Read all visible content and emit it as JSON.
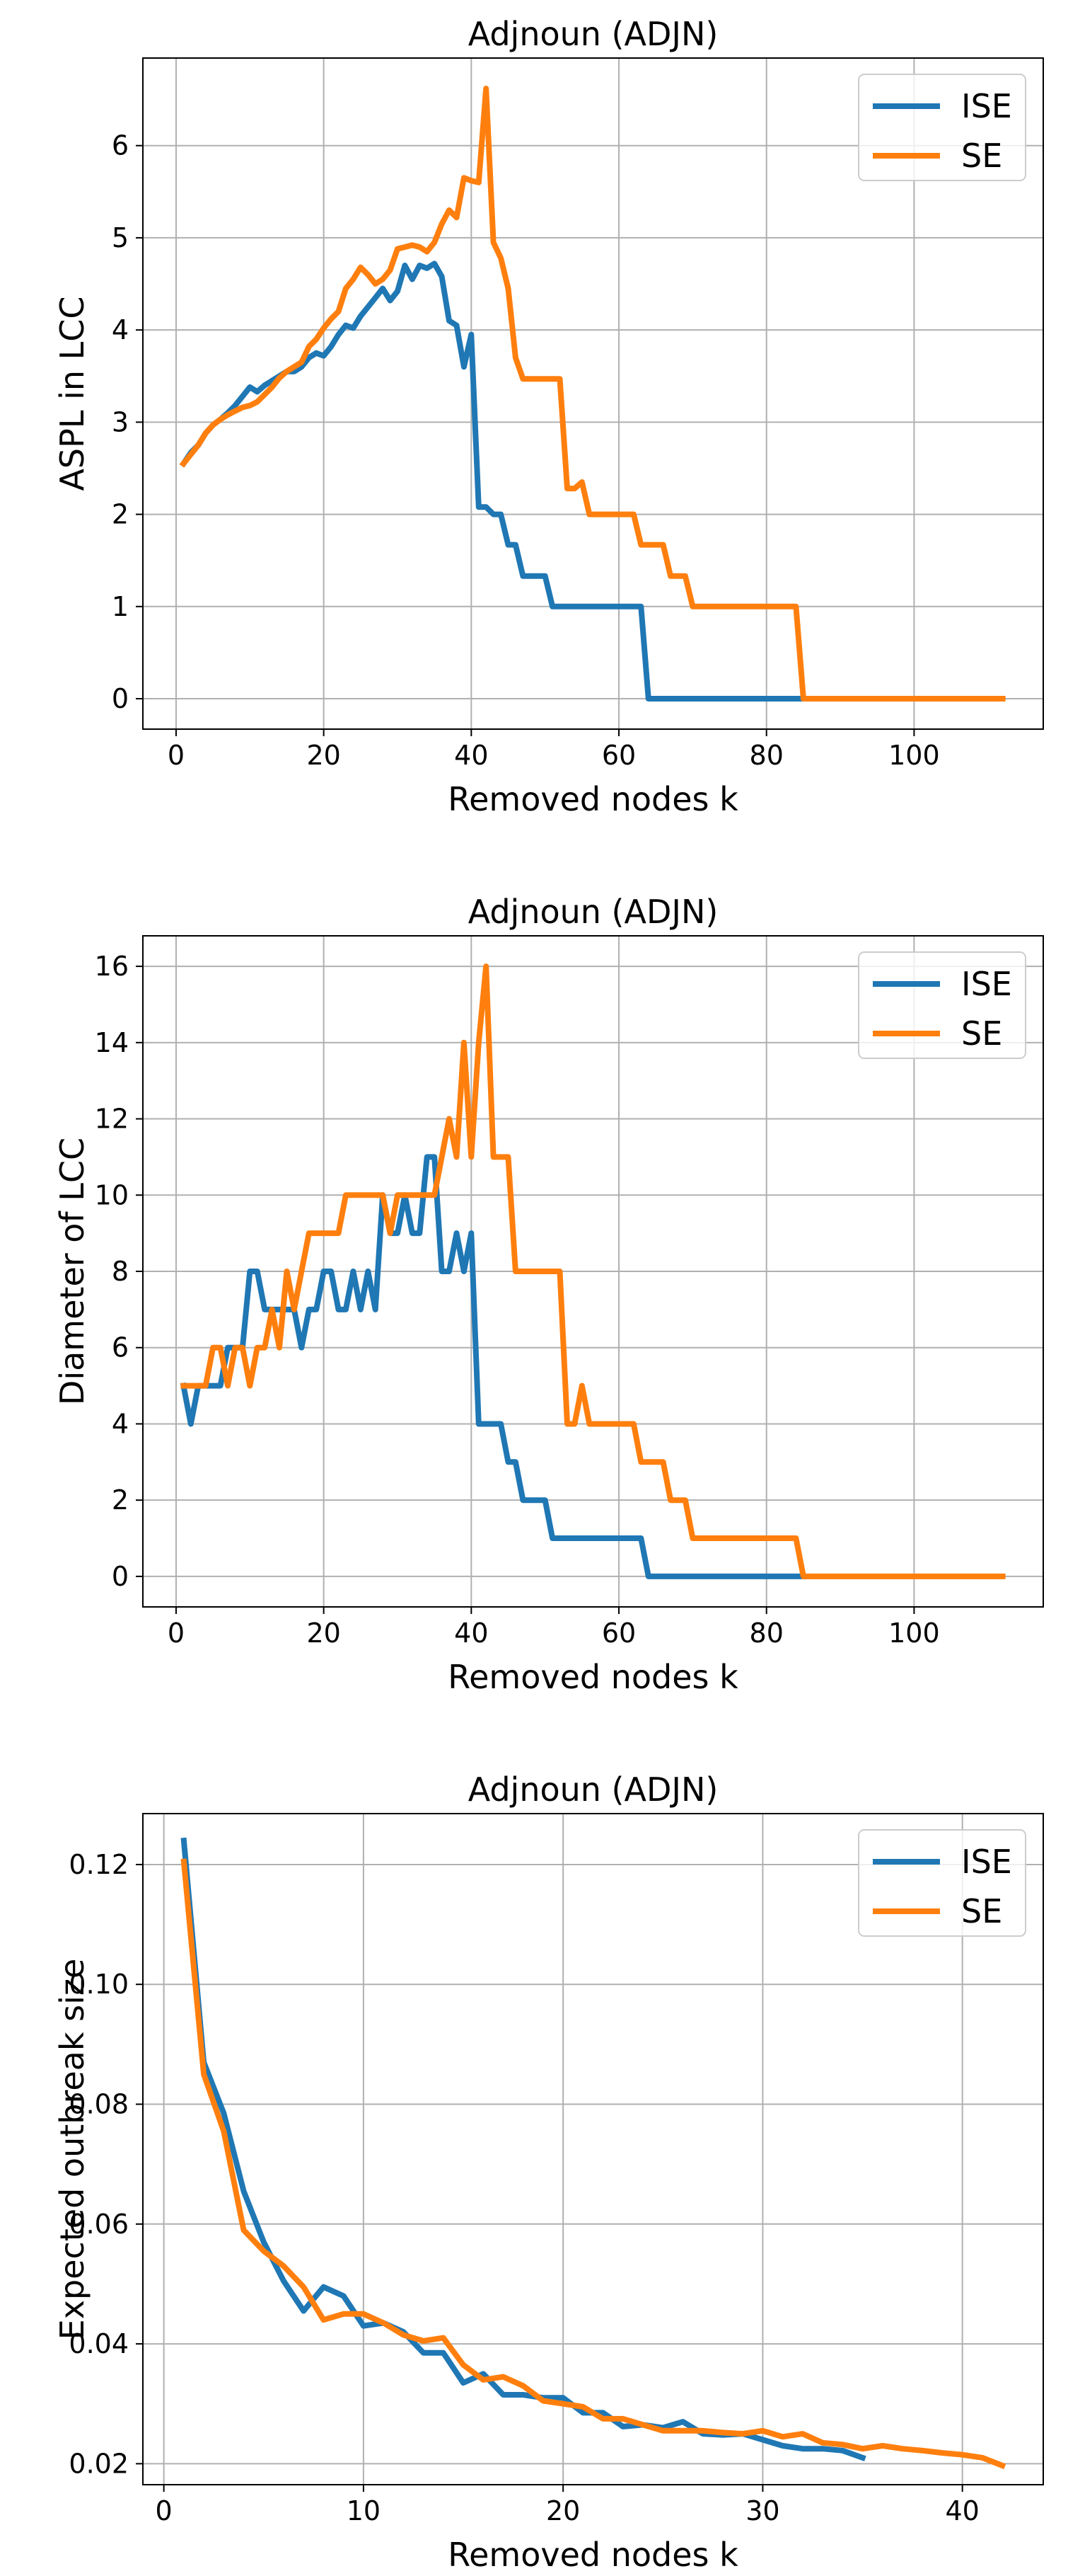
{
  "colors": {
    "ISE": "#1f77b4",
    "SE": "#ff7f0e",
    "grid": "#b0b0b0",
    "axes": "#000000"
  },
  "chart_data": [
    {
      "type": "line",
      "title": "Adjnoun (ADJN)",
      "xlabel": "Removed nodes k",
      "ylabel": "ASPL in LCC",
      "xlim": [
        -4.5,
        117.5
      ],
      "ylim": [
        -0.33,
        6.95
      ],
      "xticks": [
        0,
        20,
        40,
        60,
        80,
        100
      ],
      "yticks": [
        0,
        1,
        2,
        3,
        4,
        5,
        6
      ],
      "grid": true,
      "legend_position": "upper right",
      "series": [
        {
          "name": "ISE",
          "x": [
            1,
            2,
            3,
            4,
            5,
            6,
            7,
            8,
            9,
            10,
            11,
            12,
            13,
            14,
            15,
            16,
            17,
            18,
            19,
            20,
            21,
            22,
            23,
            24,
            25,
            26,
            27,
            28,
            29,
            30,
            31,
            32,
            33,
            34,
            35,
            36,
            37,
            38,
            39,
            40,
            41,
            42,
            43,
            44,
            45,
            46,
            47,
            48,
            49,
            50,
            51,
            52,
            53,
            54,
            55,
            56,
            57,
            58,
            59,
            60,
            61,
            62,
            63,
            64,
            65,
            70,
            75,
            80,
            85
          ],
          "y": [
            2.55,
            2.67,
            2.75,
            2.88,
            2.97,
            3.03,
            3.1,
            3.18,
            3.28,
            3.38,
            3.33,
            3.4,
            3.45,
            3.5,
            3.55,
            3.55,
            3.6,
            3.7,
            3.75,
            3.72,
            3.82,
            3.95,
            4.05,
            4.02,
            4.15,
            4.25,
            4.35,
            4.45,
            4.32,
            4.42,
            4.7,
            4.55,
            4.7,
            4.67,
            4.72,
            4.58,
            4.1,
            4.05,
            3.6,
            3.95,
            2.08,
            2.08,
            2.0,
            2.0,
            1.67,
            1.67,
            1.33,
            1.33,
            1.33,
            1.33,
            1.0,
            1.0,
            1.0,
            1.0,
            1.0,
            1.0,
            1.0,
            1.0,
            1.0,
            1.0,
            1.0,
            1.0,
            1.0,
            0.0,
            0.0,
            0.0,
            0.0,
            0.0,
            0.0
          ]
        },
        {
          "name": "SE",
          "x": [
            1,
            2,
            3,
            4,
            5,
            6,
            7,
            8,
            9,
            10,
            11,
            12,
            13,
            14,
            15,
            16,
            17,
            18,
            19,
            20,
            21,
            22,
            23,
            24,
            25,
            26,
            27,
            28,
            29,
            30,
            31,
            32,
            33,
            34,
            35,
            36,
            37,
            38,
            39,
            40,
            41,
            42,
            43,
            44,
            45,
            46,
            47,
            48,
            49,
            50,
            51,
            52,
            53,
            54,
            55,
            56,
            57,
            58,
            59,
            60,
            61,
            62,
            63,
            64,
            65,
            66,
            67,
            68,
            69,
            70,
            75,
            80,
            84,
            85,
            90,
            100,
            112
          ],
          "y": [
            2.55,
            2.65,
            2.75,
            2.88,
            2.97,
            3.03,
            3.08,
            3.12,
            3.16,
            3.18,
            3.22,
            3.3,
            3.38,
            3.48,
            3.55,
            3.6,
            3.65,
            3.82,
            3.9,
            4.02,
            4.12,
            4.2,
            4.45,
            4.55,
            4.68,
            4.6,
            4.5,
            4.55,
            4.65,
            4.88,
            4.9,
            4.92,
            4.9,
            4.85,
            4.95,
            5.15,
            5.3,
            5.22,
            5.65,
            5.62,
            5.6,
            6.62,
            4.95,
            4.78,
            4.45,
            3.7,
            3.47,
            3.47,
            3.47,
            3.47,
            3.47,
            3.47,
            2.28,
            2.28,
            2.35,
            2.0,
            2.0,
            2.0,
            2.0,
            2.0,
            2.0,
            2.0,
            1.67,
            1.67,
            1.67,
            1.67,
            1.33,
            1.33,
            1.33,
            1.0,
            1.0,
            1.0,
            1.0,
            0.0,
            0.0,
            0.0,
            0.0
          ]
        }
      ]
    },
    {
      "type": "line",
      "title": "Adjnoun (ADJN)",
      "xlabel": "Removed nodes k",
      "ylabel": "Diameter of LCC",
      "xlim": [
        -4.5,
        117.5
      ],
      "ylim": [
        -0.8,
        16.8
      ],
      "xticks": [
        0,
        20,
        40,
        60,
        80,
        100
      ],
      "yticks": [
        0,
        2,
        4,
        6,
        8,
        10,
        12,
        14,
        16
      ],
      "grid": true,
      "legend_position": "upper right",
      "series": [
        {
          "name": "ISE",
          "x": [
            1,
            2,
            3,
            4,
            5,
            6,
            7,
            8,
            9,
            10,
            11,
            12,
            13,
            14,
            15,
            16,
            17,
            18,
            19,
            20,
            21,
            22,
            23,
            24,
            25,
            26,
            27,
            28,
            29,
            30,
            31,
            32,
            33,
            34,
            35,
            36,
            37,
            38,
            39,
            40,
            41,
            42,
            43,
            44,
            45,
            46,
            47,
            48,
            49,
            50,
            51,
            52,
            53,
            54,
            55,
            56,
            57,
            58,
            59,
            60,
            61,
            62,
            63,
            64,
            65,
            70,
            75,
            80,
            85
          ],
          "y": [
            5,
            4,
            5,
            5,
            5,
            5,
            6,
            6,
            6,
            8,
            8,
            7,
            7,
            7,
            7,
            7,
            6,
            7,
            7,
            8,
            8,
            7,
            7,
            8,
            7,
            8,
            7,
            10,
            9,
            9,
            10,
            9,
            9,
            11,
            11,
            8,
            8,
            9,
            8,
            9,
            4,
            4,
            4,
            4,
            3,
            3,
            2,
            2,
            2,
            2,
            1,
            1,
            1,
            1,
            1,
            1,
            1,
            1,
            1,
            1,
            1,
            1,
            1,
            0,
            0,
            0,
            0,
            0,
            0
          ]
        },
        {
          "name": "SE",
          "x": [
            1,
            2,
            3,
            4,
            5,
            6,
            7,
            8,
            9,
            10,
            11,
            12,
            13,
            14,
            15,
            16,
            17,
            18,
            19,
            20,
            21,
            22,
            23,
            24,
            25,
            26,
            27,
            28,
            29,
            30,
            31,
            32,
            33,
            34,
            35,
            36,
            37,
            38,
            39,
            40,
            41,
            42,
            43,
            44,
            45,
            46,
            47,
            48,
            49,
            50,
            51,
            52,
            53,
            54,
            55,
            56,
            57,
            58,
            59,
            60,
            61,
            62,
            63,
            64,
            65,
            66,
            67,
            68,
            69,
            70,
            75,
            80,
            84,
            85,
            90,
            100,
            112
          ],
          "y": [
            5,
            5,
            5,
            5,
            6,
            6,
            5,
            6,
            6,
            5,
            6,
            6,
            7,
            6,
            8,
            7,
            8,
            9,
            9,
            9,
            9,
            9,
            10,
            10,
            10,
            10,
            10,
            10,
            9,
            10,
            10,
            10,
            10,
            10,
            10,
            11,
            12,
            11,
            14,
            11,
            14,
            16,
            11,
            11,
            11,
            8,
            8,
            8,
            8,
            8,
            8,
            8,
            4,
            4,
            5,
            4,
            4,
            4,
            4,
            4,
            4,
            4,
            3,
            3,
            3,
            3,
            2,
            2,
            2,
            1,
            1,
            1,
            1,
            0,
            0,
            0,
            0
          ]
        }
      ]
    },
    {
      "type": "line",
      "title": "Adjnoun (ADJN)",
      "xlabel": "Removed nodes k",
      "ylabel": "Expected outbreak size",
      "xlim": [
        -1.05,
        44.05
      ],
      "ylim": [
        0.0165,
        0.1285
      ],
      "xticks": [
        0,
        10,
        20,
        30,
        40
      ],
      "yticks": [
        0.02,
        0.04,
        0.06,
        0.08,
        0.1,
        0.12
      ],
      "ytick_labels": [
        "0.02",
        "0.04",
        "0.06",
        "0.08",
        "0.10",
        "0.12"
      ],
      "grid": true,
      "legend_position": "upper right",
      "series": [
        {
          "name": "ISE",
          "x": [
            1,
            2,
            3,
            4,
            5,
            6,
            7,
            8,
            9,
            10,
            11,
            12,
            13,
            14,
            15,
            16,
            17,
            18,
            19,
            20,
            21,
            22,
            23,
            24,
            25,
            26,
            27,
            28,
            29,
            30,
            31,
            32,
            33,
            34,
            35
          ],
          "y": [
            0.124,
            0.087,
            0.0785,
            0.0655,
            0.057,
            0.0505,
            0.0455,
            0.0495,
            0.048,
            0.043,
            0.0435,
            0.042,
            0.0385,
            0.0385,
            0.0335,
            0.035,
            0.0315,
            0.0315,
            0.031,
            0.031,
            0.0285,
            0.0285,
            0.0262,
            0.0265,
            0.026,
            0.027,
            0.025,
            0.0248,
            0.025,
            0.024,
            0.023,
            0.0225,
            0.0225,
            0.0222,
            0.021
          ]
        },
        {
          "name": "SE",
          "x": [
            1,
            2,
            3,
            4,
            5,
            6,
            7,
            8,
            9,
            10,
            11,
            12,
            13,
            14,
            15,
            16,
            17,
            18,
            19,
            20,
            21,
            22,
            23,
            24,
            25,
            26,
            27,
            28,
            29,
            30,
            31,
            32,
            33,
            34,
            35,
            36,
            37,
            38,
            39,
            40,
            41,
            42
          ],
          "y": [
            0.1205,
            0.085,
            0.0755,
            0.059,
            0.0555,
            0.053,
            0.0495,
            0.044,
            0.045,
            0.045,
            0.0435,
            0.0415,
            0.0405,
            0.041,
            0.0365,
            0.034,
            0.0345,
            0.033,
            0.0305,
            0.03,
            0.0295,
            0.0275,
            0.0275,
            0.0265,
            0.0255,
            0.0255,
            0.0255,
            0.0252,
            0.025,
            0.0255,
            0.0245,
            0.025,
            0.0235,
            0.0232,
            0.0225,
            0.023,
            0.0225,
            0.0222,
            0.0218,
            0.0215,
            0.021,
            0.0197
          ]
        }
      ]
    }
  ]
}
